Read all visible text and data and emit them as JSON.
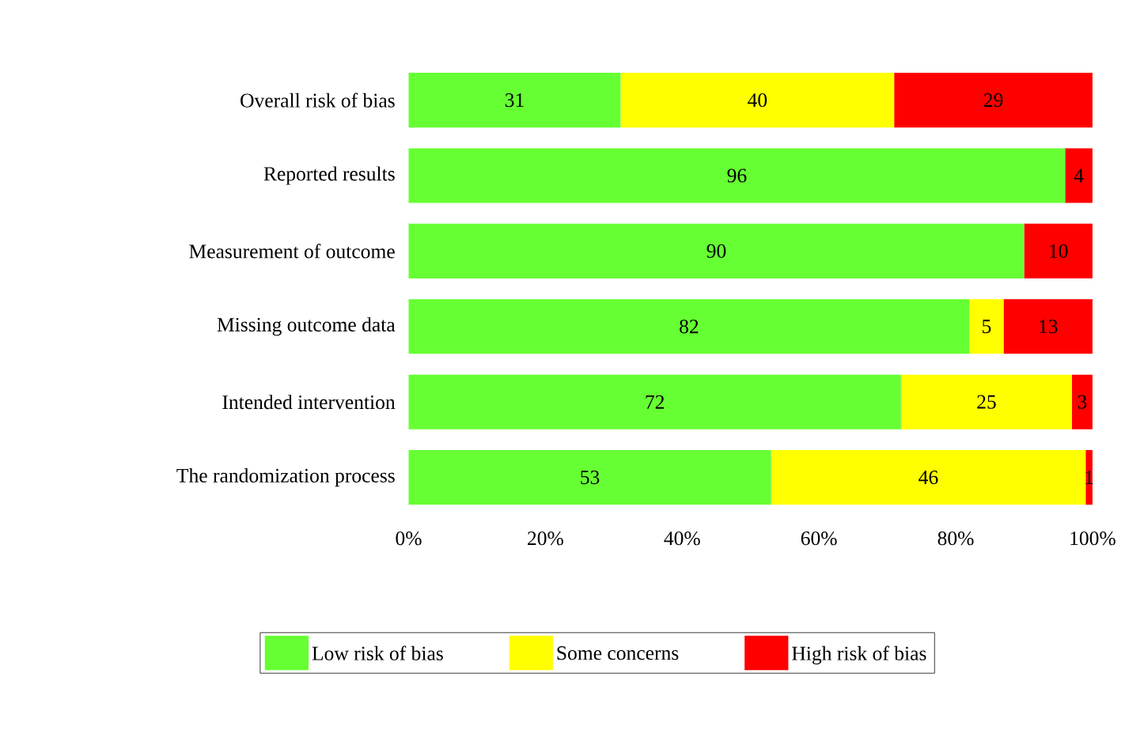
{
  "chart_data": {
    "type": "bar",
    "orientation": "horizontal",
    "stacked": true,
    "data_labels": true,
    "legend": "bottom",
    "grid": false,
    "categories": [
      "Overall risk of bias",
      "Reported results",
      "Measurement of outcome",
      "Missing outcome data",
      "Intended intervention",
      "The randomization process"
    ],
    "series": [
      {
        "name": "Low risk of bias",
        "color": "#66ff33",
        "values": [
          31,
          96,
          90,
          82,
          72,
          53
        ]
      },
      {
        "name": "Some concerns",
        "color": "#ffff00",
        "values": [
          40,
          null,
          null,
          5,
          25,
          46
        ]
      },
      {
        "name": "High risk of bias",
        "color": "#ff0000",
        "values": [
          29,
          4,
          10,
          13,
          3,
          1
        ]
      }
    ],
    "xlim": [
      0,
      100
    ],
    "xticks": [
      {
        "value": 0,
        "label": "0%"
      },
      {
        "value": 20,
        "label": "20%"
      },
      {
        "value": 40,
        "label": "40%"
      },
      {
        "value": 60,
        "label": "60%"
      },
      {
        "value": 80,
        "label": "80%"
      },
      {
        "value": 100,
        "label": "100%"
      }
    ]
  }
}
